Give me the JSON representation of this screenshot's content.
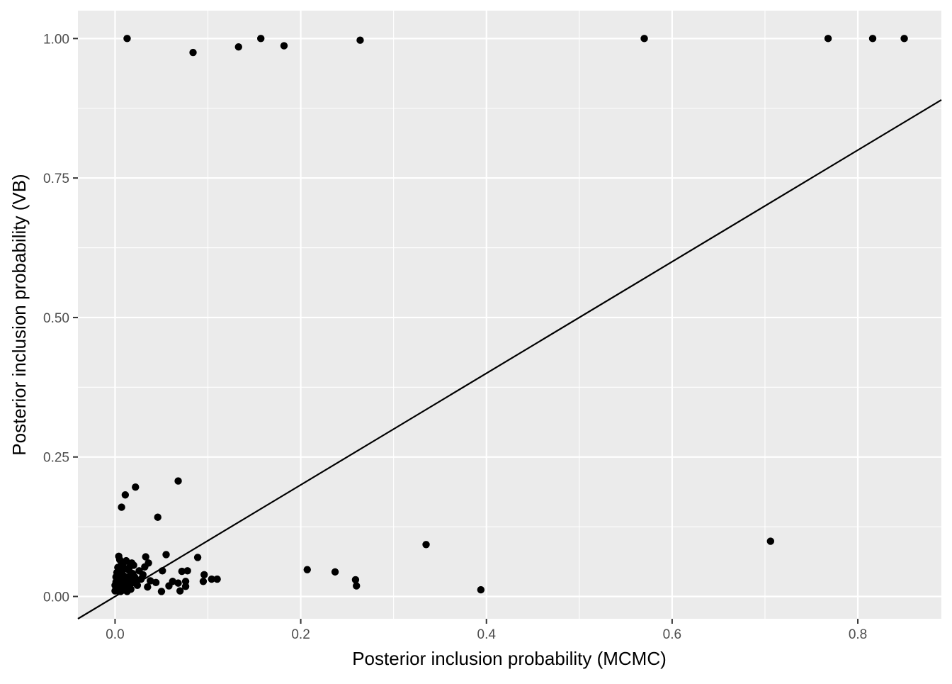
{
  "chart_data": {
    "type": "scatter",
    "title": "",
    "xlabel": "Posterior inclusion probability (MCMC)",
    "ylabel": "Posterior inclusion probability (VB)",
    "xlim": [
      -0.04,
      0.89
    ],
    "ylim": [
      -0.04,
      1.05
    ],
    "x_ticks": [
      0.0,
      0.2,
      0.4,
      0.6,
      0.8
    ],
    "x_tick_labels": [
      "0.0",
      "0.2",
      "0.4",
      "0.6",
      "0.8"
    ],
    "y_ticks": [
      0.0,
      0.25,
      0.5,
      0.75,
      1.0
    ],
    "y_tick_labels": [
      "0.00",
      "0.25",
      "0.50",
      "0.75",
      "1.00"
    ],
    "grid": true,
    "panel_color": "#ebebeb",
    "grid_color": "#ffffff",
    "point_color": "#000000",
    "reference_line": {
      "slope": 1,
      "intercept": 0,
      "color": "#000000"
    },
    "points": [
      {
        "x": 0.013,
        "y": 1.0
      },
      {
        "x": 0.084,
        "y": 0.975
      },
      {
        "x": 0.133,
        "y": 0.985
      },
      {
        "x": 0.157,
        "y": 1.0
      },
      {
        "x": 0.182,
        "y": 0.987
      },
      {
        "x": 0.264,
        "y": 0.997
      },
      {
        "x": 0.57,
        "y": 1.0
      },
      {
        "x": 0.768,
        "y": 1.0
      },
      {
        "x": 0.816,
        "y": 1.0
      },
      {
        "x": 0.85,
        "y": 1.0
      },
      {
        "x": 0.068,
        "y": 0.207
      },
      {
        "x": 0.022,
        "y": 0.196
      },
      {
        "x": 0.011,
        "y": 0.182
      },
      {
        "x": 0.007,
        "y": 0.16
      },
      {
        "x": 0.046,
        "y": 0.142
      },
      {
        "x": 0.335,
        "y": 0.093
      },
      {
        "x": 0.706,
        "y": 0.099
      },
      {
        "x": 0.394,
        "y": 0.012
      },
      {
        "x": 0.207,
        "y": 0.048
      },
      {
        "x": 0.237,
        "y": 0.044
      },
      {
        "x": 0.259,
        "y": 0.03
      },
      {
        "x": 0.26,
        "y": 0.019
      },
      {
        "x": 0.055,
        "y": 0.075
      },
      {
        "x": 0.089,
        "y": 0.07
      },
      {
        "x": 0.033,
        "y": 0.071
      },
      {
        "x": 0.096,
        "y": 0.039
      },
      {
        "x": 0.104,
        "y": 0.031
      },
      {
        "x": 0.11,
        "y": 0.031
      },
      {
        "x": 0.095,
        "y": 0.027
      },
      {
        "x": 0.078,
        "y": 0.046
      },
      {
        "x": 0.072,
        "y": 0.045
      },
      {
        "x": 0.076,
        "y": 0.027
      },
      {
        "x": 0.076,
        "y": 0.018
      },
      {
        "x": 0.07,
        "y": 0.01
      },
      {
        "x": 0.068,
        "y": 0.024
      },
      {
        "x": 0.062,
        "y": 0.027
      },
      {
        "x": 0.058,
        "y": 0.019
      },
      {
        "x": 0.051,
        "y": 0.046
      },
      {
        "x": 0.05,
        "y": 0.009
      },
      {
        "x": 0.044,
        "y": 0.025
      },
      {
        "x": 0.036,
        "y": 0.06
      },
      {
        "x": 0.035,
        "y": 0.017
      },
      {
        "x": 0.038,
        "y": 0.028
      },
      {
        "x": 0.032,
        "y": 0.053
      },
      {
        "x": 0.03,
        "y": 0.039
      },
      {
        "x": 0.028,
        "y": 0.031
      },
      {
        "x": 0.026,
        "y": 0.046
      },
      {
        "x": 0.024,
        "y": 0.02
      },
      {
        "x": 0.022,
        "y": 0.028
      },
      {
        "x": 0.02,
        "y": 0.056
      },
      {
        "x": 0.019,
        "y": 0.041
      },
      {
        "x": 0.018,
        "y": 0.06
      },
      {
        "x": 0.017,
        "y": 0.013
      },
      {
        "x": 0.016,
        "y": 0.031
      },
      {
        "x": 0.015,
        "y": 0.047
      },
      {
        "x": 0.014,
        "y": 0.023
      },
      {
        "x": 0.013,
        "y": 0.009
      },
      {
        "x": 0.012,
        "y": 0.064
      },
      {
        "x": 0.011,
        "y": 0.035
      },
      {
        "x": 0.01,
        "y": 0.017
      },
      {
        "x": 0.01,
        "y": 0.05
      },
      {
        "x": 0.009,
        "y": 0.027
      },
      {
        "x": 0.008,
        "y": 0.04
      },
      {
        "x": 0.008,
        "y": 0.011
      },
      {
        "x": 0.007,
        "y": 0.058
      },
      {
        "x": 0.007,
        "y": 0.02
      },
      {
        "x": 0.006,
        "y": 0.032
      },
      {
        "x": 0.006,
        "y": 0.045
      },
      {
        "x": 0.005,
        "y": 0.066
      },
      {
        "x": 0.005,
        "y": 0.014
      },
      {
        "x": 0.004,
        "y": 0.072
      },
      {
        "x": 0.004,
        "y": 0.025
      },
      {
        "x": 0.004,
        "y": 0.038
      },
      {
        "x": 0.003,
        "y": 0.052
      },
      {
        "x": 0.003,
        "y": 0.018
      },
      {
        "x": 0.003,
        "y": 0.01
      },
      {
        "x": 0.002,
        "y": 0.03
      },
      {
        "x": 0.002,
        "y": 0.043
      },
      {
        "x": 0.002,
        "y": 0.022
      },
      {
        "x": 0.001,
        "y": 0.012
      },
      {
        "x": 0.001,
        "y": 0.035
      },
      {
        "x": 0.001,
        "y": 0.016
      },
      {
        "x": 0.001,
        "y": 0.026
      },
      {
        "x": 0.0,
        "y": 0.01
      },
      {
        "x": 0.0,
        "y": 0.02
      },
      {
        "x": 0.012,
        "y": 0.028
      },
      {
        "x": 0.014,
        "y": 0.015
      },
      {
        "x": 0.016,
        "y": 0.054
      },
      {
        "x": 0.018,
        "y": 0.025
      },
      {
        "x": 0.021,
        "y": 0.035
      },
      {
        "x": 0.009,
        "y": 0.06
      },
      {
        "x": 0.006,
        "y": 0.009
      },
      {
        "x": 0.011,
        "y": 0.022
      },
      {
        "x": 0.017,
        "y": 0.039
      }
    ]
  }
}
